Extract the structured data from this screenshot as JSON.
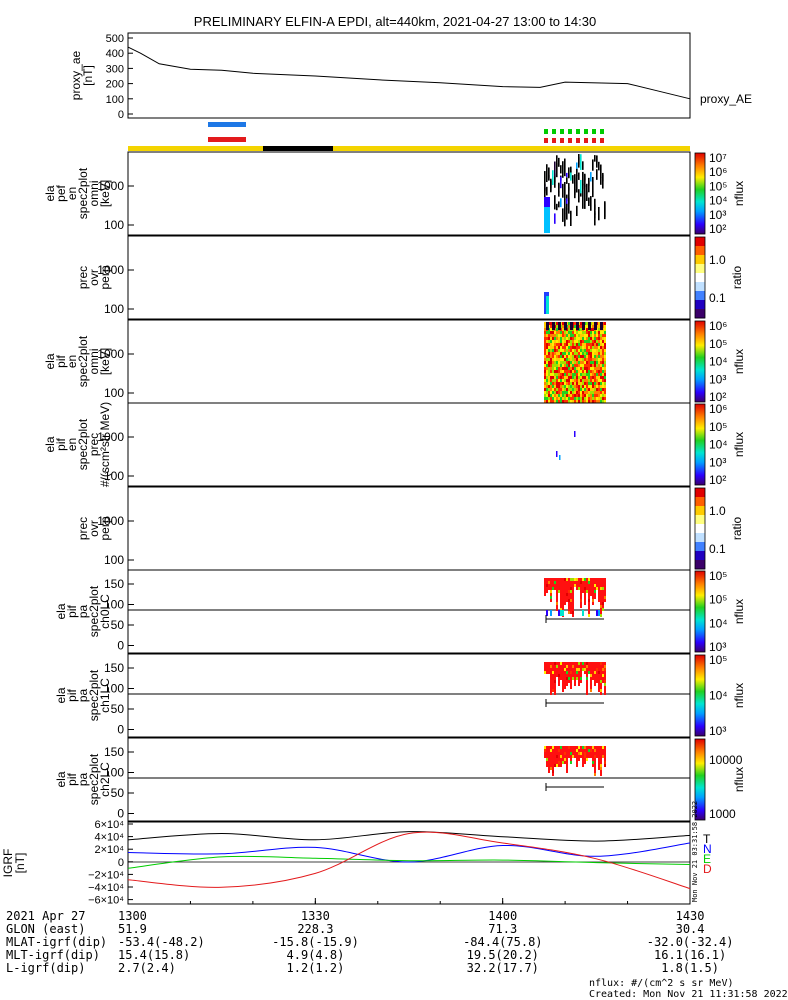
{
  "title": "PRELIMINARY ELFIN-A EPDI, alt=440km, 2021-04-27 13:00 to 14:30",
  "colors": {
    "axis": "#000000",
    "bar_yellow": "#f4d400",
    "bar_black": "#000000",
    "blue": "#1e78e6",
    "red": "#e31a1c",
    "green": "#00cc00"
  },
  "proxy_ae": {
    "ylabel_lines": [
      "proxy_ae",
      "[nT]"
    ],
    "yticks": [
      "500",
      "400",
      "300",
      "200",
      "100",
      "0"
    ],
    "ytick_values": [
      500,
      400,
      300,
      200,
      100,
      0
    ],
    "right_label": "proxy_AE"
  },
  "panels": [
    {
      "id": "elx-pef-en",
      "ylabel_lines": [
        "ela",
        "pef",
        "en",
        "spec2plot",
        "omni",
        "[keV]"
      ],
      "yticks": [
        "1000",
        "100"
      ],
      "cbar_type": "spectrum",
      "cbar_ticks": [
        "10⁷",
        "10⁶",
        "10⁵",
        "10⁴",
        "10³",
        "10²"
      ],
      "cbar_label": "nflux"
    },
    {
      "id": "elx-pef-ratio",
      "ylabel_lines": [
        "prec",
        "ovr",
        "perp"
      ],
      "yticks": [
        "1000",
        "100"
      ],
      "cbar_type": "ratio",
      "cbar_ticks": [
        "1.0",
        "0.1"
      ],
      "cbar_label": "ratio"
    },
    {
      "id": "elx-pif-en",
      "ylabel_lines": [
        "ela",
        "pif",
        "en",
        "spec2plot",
        "omni",
        "[keV]"
      ],
      "yticks": [
        "1000",
        "100"
      ],
      "cbar_type": "spectrum",
      "cbar_ticks": [
        "10⁶",
        "10⁵",
        "10⁴",
        "10³",
        "10²"
      ],
      "cbar_label": "nflux"
    },
    {
      "id": "elx-pif-prec",
      "ylabel_lines": [
        "ela",
        "pif",
        "en",
        "spec2plot",
        "prec",
        "#/(scm²str MeV)"
      ],
      "yticks": [
        "1000",
        "100"
      ],
      "cbar_type": "spectrum",
      "cbar_ticks": [
        "10⁶",
        "10⁵",
        "10⁴",
        "10³",
        "10²"
      ],
      "cbar_label": "nflux"
    },
    {
      "id": "elx-pif-ratio",
      "ylabel_lines": [
        "prec",
        "ovr",
        "perp"
      ],
      "yticks": [
        "1000",
        "100"
      ],
      "cbar_type": "ratio",
      "cbar_ticks": [
        "1.0",
        "0.1"
      ],
      "cbar_label": "ratio"
    },
    {
      "id": "elx-pif-pa-ch0",
      "ylabel_lines": [
        "ela",
        "pif",
        "pa",
        "spec2plot",
        "ch0LC"
      ],
      "yticks": [
        "150",
        "100",
        "50",
        "0"
      ],
      "cbar_type": "spectrum",
      "cbar_ticks": [
        "10⁵",
        "10⁵",
        "10⁴",
        "10³"
      ],
      "cbar_label": "nflux"
    },
    {
      "id": "elx-pif-pa-ch1",
      "ylabel_lines": [
        "ela",
        "pif",
        "pa",
        "spec2plot",
        "ch1LC"
      ],
      "yticks": [
        "150",
        "100",
        "50",
        "0"
      ],
      "cbar_type": "spectrum",
      "cbar_ticks": [
        "10⁵",
        "10⁴",
        "10³"
      ],
      "cbar_label": "nflux"
    },
    {
      "id": "elx-pif-pa-ch2",
      "ylabel_lines": [
        "ela",
        "pif",
        "pa",
        "spec2plot",
        "ch2LC"
      ],
      "yticks": [
        "150",
        "100",
        "50",
        "0"
      ],
      "cbar_type": "spectrum",
      "cbar_ticks": [
        "10000",
        "1000"
      ],
      "cbar_label": "nflux"
    }
  ],
  "igrf": {
    "ylabel_lines": [
      "IGRF",
      "[nT]"
    ],
    "yticks": [
      "6×10⁴",
      "4×10⁴",
      "2×10⁴",
      "0",
      "−2×10⁴",
      "−4×10⁴",
      "−6×10⁴"
    ],
    "legend": [
      {
        "label": "T",
        "color": "#000000"
      },
      {
        "label": "N",
        "color": "#0000ff"
      },
      {
        "label": "E",
        "color": "#00cc00"
      },
      {
        "label": "D",
        "color": "#e31a1c"
      }
    ],
    "side_text": "Mon Nov 21 03:31:58 2022"
  },
  "chart_data": [
    {
      "type": "line",
      "title": "PRELIMINARY ELFIN-A EPDI, alt=440km, 2021-04-27 13:00 to 14:30",
      "ylabel": "proxy_ae [nT]",
      "ylim": [
        0,
        500
      ],
      "series": [
        {
          "name": "proxy_AE",
          "x": [
            0,
            2,
            5,
            10,
            15,
            20,
            30,
            40,
            50,
            60,
            66,
            70,
            80,
            85,
            90
          ],
          "y": [
            440,
            400,
            330,
            295,
            288,
            268,
            250,
            225,
            205,
            180,
            175,
            210,
            200,
            150,
            100
          ]
        }
      ]
    },
    {
      "type": "line",
      "ylabel": "IGRF [nT]",
      "ylim": [
        -60000,
        60000
      ],
      "series": [
        {
          "name": "T",
          "x": [
            0,
            15,
            30,
            45,
            60,
            75,
            90
          ],
          "y": [
            35000,
            45000,
            35000,
            48000,
            40000,
            33000,
            42000
          ]
        },
        {
          "name": "N",
          "x": [
            0,
            15,
            30,
            45,
            60,
            75,
            90
          ],
          "y": [
            15000,
            13000,
            23000,
            0,
            26000,
            9000,
            30000
          ]
        },
        {
          "name": "E",
          "x": [
            0,
            15,
            30,
            45,
            60,
            75,
            90
          ],
          "y": [
            -10000,
            8000,
            6000,
            2000,
            3000,
            -1000,
            -4000
          ]
        },
        {
          "name": "D",
          "x": [
            0,
            15,
            30,
            45,
            60,
            75,
            90
          ],
          "y": [
            -28000,
            -40000,
            -18000,
            45000,
            30000,
            5000,
            -42000
          ]
        }
      ]
    }
  ],
  "footer": {
    "rows": [
      {
        "label": "2021 Apr 27",
        "values": [
          "1300",
          "1330",
          "1400",
          "1430"
        ]
      },
      {
        "label": "GLON (east)",
        "values": [
          "51.9",
          "228.3",
          "71.3",
          "30.4"
        ]
      },
      {
        "label": "MLAT-igrf(dip)",
        "values": [
          "-53.4(-48.2)",
          "-15.8(-15.9)",
          "-84.4(75.8)",
          "-32.0(-32.4)"
        ]
      },
      {
        "label": "MLT-igrf(dip)",
        "values": [
          "15.4(15.8)",
          "4.9(4.8)",
          "19.5(20.2)",
          "16.1(16.1)"
        ]
      },
      {
        "label": "L-igrf(dip)",
        "values": [
          "2.7(2.4)",
          "1.2(1.2)",
          "32.2(17.7)",
          "1.8(1.5)"
        ]
      }
    ],
    "unit_note": "nflux: #/(cm^2 s sr MeV)",
    "created_note": "Created: Mon Nov 21 11:31:58 2022"
  }
}
